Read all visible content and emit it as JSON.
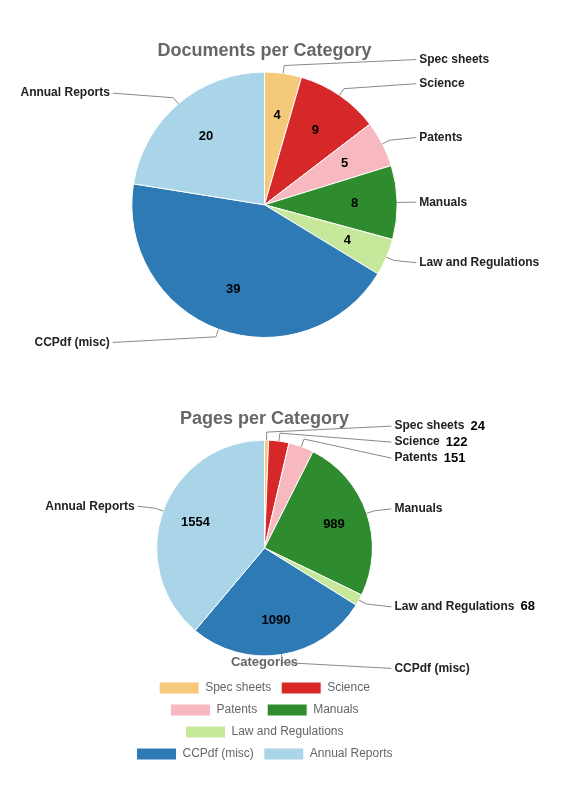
{
  "chart_data": [
    {
      "type": "pie",
      "title": "Documents per Category",
      "categories": [
        "Spec sheets",
        "Science",
        "Patents",
        "Manuals",
        "Law and Regulations",
        "CCPdf (misc)",
        "Annual Reports"
      ],
      "values": [
        4,
        9,
        5,
        8,
        4,
        39,
        20
      ],
      "colors": [
        "#f5c97a",
        "#d62828",
        "#f7b8c0",
        "#2e8b2e",
        "#c5e89a",
        "#2d7ab5",
        "#aad4e8"
      ],
      "data_labels": true
    },
    {
      "type": "pie",
      "title": "Pages per Category",
      "categories": [
        "Spec sheets",
        "Science",
        "Patents",
        "Manuals",
        "Law and Regulations",
        "CCPdf (misc)",
        "Annual Reports"
      ],
      "values": [
        24,
        122,
        151,
        989,
        68,
        1090,
        1554
      ],
      "colors": [
        "#f5c97a",
        "#d62828",
        "#f7b8c0",
        "#2e8b2e",
        "#c5e89a",
        "#2d7ab5",
        "#aad4e8"
      ],
      "data_labels": true,
      "legend": "bottom",
      "legend_title": "Categories"
    }
  ]
}
